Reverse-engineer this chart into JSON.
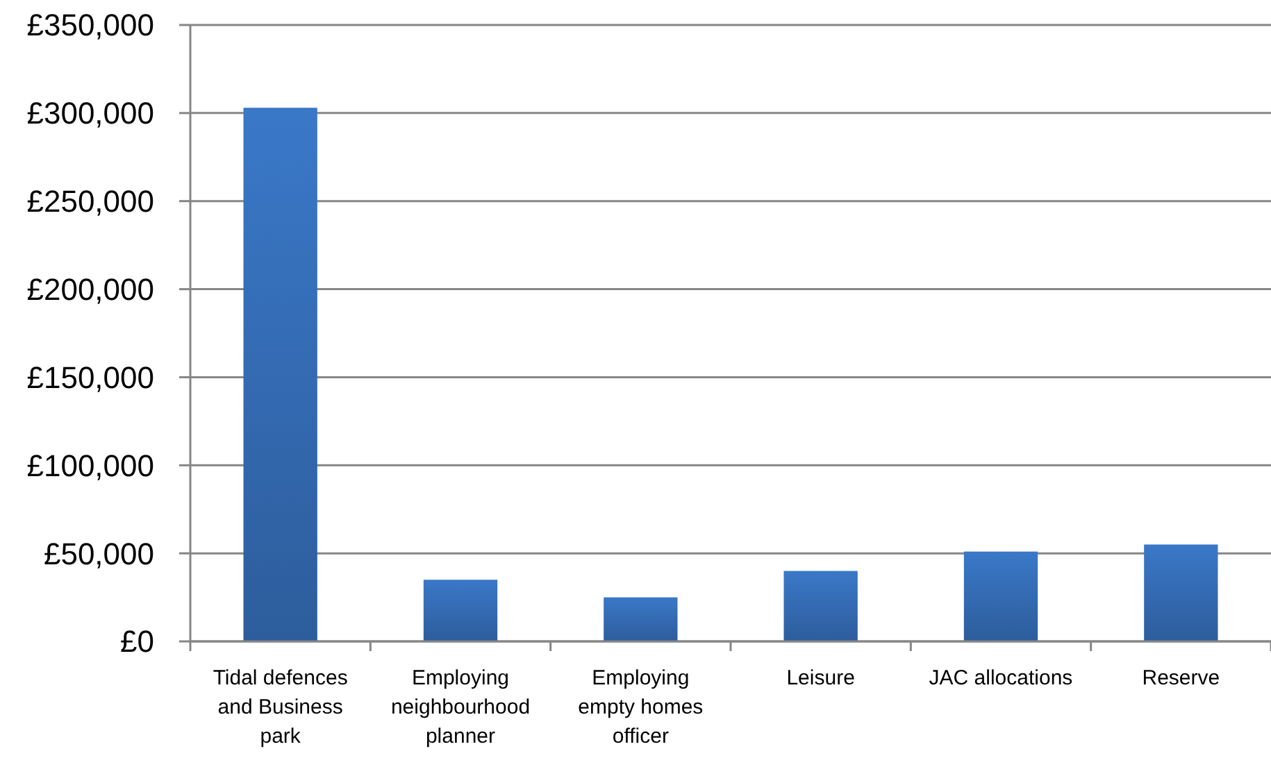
{
  "chart_data": {
    "type": "bar",
    "categories": [
      "Tidal defences and Business park",
      "Employing neighbourhood planner",
      "Employing empty homes officer",
      "Leisure",
      "JAC allocations",
      "Reserve"
    ],
    "values": [
      303000,
      35000,
      25000,
      40000,
      51000,
      55000
    ],
    "color": "#3a78c8",
    "ylim": [
      0,
      350000
    ],
    "yticks": [
      {
        "value": 0,
        "label": "£0"
      },
      {
        "value": 50000,
        "label": "£50,000"
      },
      {
        "value": 100000,
        "label": "£100,000"
      },
      {
        "value": 150000,
        "label": "£150,000"
      },
      {
        "value": 200000,
        "label": "£200,000"
      },
      {
        "value": 250000,
        "label": "£250,000"
      },
      {
        "value": 300000,
        "label": "£300,000"
      },
      {
        "value": 350000,
        "label": "£350,000"
      }
    ],
    "grid": "y"
  }
}
